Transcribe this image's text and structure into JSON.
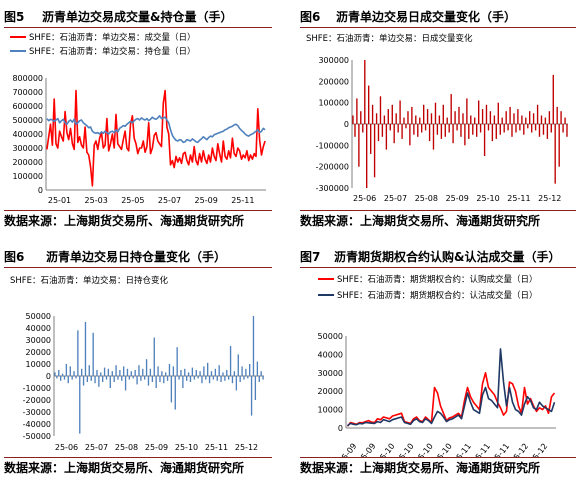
{
  "source_text": "数据来源：上海期货交易所、海通期货研究所",
  "chart_data": [
    {
      "id": "c1",
      "type": "line",
      "figure_label": "图5",
      "title": "沥青单边交易成交量&持仓量（手）",
      "legend": "top-left",
      "x_ticks": [
        "25-01",
        "25-03",
        "25-05",
        "25-07",
        "25-09",
        "25-11"
      ],
      "ylim": [
        0,
        800000
      ],
      "y_ticks": [
        0,
        100000,
        200000,
        300000,
        400000,
        500000,
        600000,
        700000,
        800000
      ],
      "y_tick_labels": [
        "0",
        "100000",
        "200000",
        "300000",
        "400000",
        "500000",
        "600000",
        "700000",
        "800000"
      ],
      "series": [
        {
          "name": "SHFE：石油沥青：单边交易：成交量（日）",
          "color": "#ff0000",
          "values": [
            290000,
            380000,
            470000,
            320000,
            650000,
            330000,
            300000,
            420000,
            380000,
            350000,
            560000,
            410000,
            360000,
            440000,
            330000,
            290000,
            710000,
            340000,
            380000,
            320000,
            300000,
            450000,
            270000,
            250000,
            170000,
            30000,
            320000,
            350000,
            290000,
            370000,
            410000,
            300000,
            320000,
            510000,
            280000,
            330000,
            400000,
            300000,
            540000,
            330000,
            310000,
            290000,
            360000,
            420000,
            300000,
            280000,
            470000,
            530000,
            370000,
            330000,
            260000,
            300000,
            300000,
            350000,
            270000,
            310000,
            480000,
            260000,
            300000,
            390000,
            410000,
            350000,
            330000,
            310000,
            620000,
            710000,
            450000,
            400000,
            180000,
            210000,
            160000,
            240000,
            200000,
            230000,
            190000,
            260000,
            270000,
            210000,
            180000,
            250000,
            200000,
            310000,
            210000,
            180000,
            260000,
            200000,
            280000,
            220000,
            190000,
            250000,
            200000,
            300000,
            240000,
            210000,
            330000,
            260000,
            200000,
            350000,
            240000,
            220000,
            280000,
            230000,
            370000,
            260000,
            240000,
            300000,
            280000,
            220000,
            250000,
            230000,
            280000,
            210000,
            250000,
            220000,
            260000,
            240000,
            580000,
            360000,
            250000,
            310000,
            350000
          ]
        },
        {
          "name": "SHFE：石油沥青：单边交易：持仓量（日）",
          "color": "#4f81bd",
          "values": [
            510000,
            495000,
            505000,
            500000,
            490000,
            500000,
            510000,
            480000,
            495000,
            505000,
            480000,
            470000,
            490000,
            500000,
            485000,
            505000,
            470000,
            480000,
            495000,
            500000,
            480000,
            470000,
            460000,
            445000,
            450000,
            420000,
            410000,
            405000,
            410000,
            400000,
            415000,
            405000,
            420000,
            410000,
            400000,
            415000,
            420000,
            410000,
            430000,
            415000,
            440000,
            450000,
            460000,
            455000,
            470000,
            480000,
            490000,
            480000,
            495000,
            505000,
            510000,
            500000,
            515000,
            505000,
            500000,
            510000,
            495000,
            505000,
            520000,
            510000,
            505000,
            515000,
            530000,
            510000,
            515000,
            520000,
            500000,
            480000,
            430000,
            390000,
            370000,
            355000,
            350000,
            360000,
            355000,
            340000,
            345000,
            360000,
            355000,
            350000,
            365000,
            355000,
            345000,
            340000,
            355000,
            365000,
            380000,
            370000,
            360000,
            375000,
            385000,
            380000,
            395000,
            400000,
            405000,
            410000,
            415000,
            420000,
            430000,
            435000,
            445000,
            450000,
            455000,
            465000,
            470000,
            460000,
            440000,
            425000,
            415000,
            400000,
            390000,
            385000,
            395000,
            400000,
            410000,
            420000,
            430000,
            410000,
            420000,
            440000,
            430000
          ]
        }
      ]
    },
    {
      "id": "c2",
      "type": "bar",
      "figure_label": "图6",
      "title": "沥青单边交易日成交量变化（手）",
      "legend": "top-left",
      "x_ticks": [
        "25-06",
        "25-07",
        "25-08",
        "25-09",
        "25-10",
        "25-11",
        "25-12"
      ],
      "ylim": [
        -300000,
        300000
      ],
      "y_ticks": [
        -300000,
        -200000,
        -100000,
        0,
        100000,
        200000,
        300000
      ],
      "y_tick_labels": [
        "-300000",
        "-200000",
        "-100000",
        "0",
        "100000",
        "200000",
        "300000"
      ],
      "series": [
        {
          "name": "SHFE：石油沥青：单边交易：日成交量变化",
          "color": "#c00000",
          "values": [
            40000,
            -60000,
            120000,
            -200000,
            60000,
            -40000,
            300000,
            -300000,
            180000,
            -140000,
            90000,
            -250000,
            50000,
            -80000,
            130000,
            -60000,
            40000,
            -120000,
            70000,
            -30000,
            90000,
            -90000,
            50000,
            -40000,
            110000,
            -70000,
            30000,
            -20000,
            60000,
            -100000,
            80000,
            -50000,
            40000,
            -60000,
            30000,
            -40000,
            90000,
            -30000,
            70000,
            -80000,
            50000,
            -120000,
            100000,
            -50000,
            40000,
            -70000,
            90000,
            -60000,
            30000,
            -40000,
            140000,
            -90000,
            60000,
            -30000,
            80000,
            -60000,
            50000,
            -100000,
            120000,
            -70000,
            40000,
            -50000,
            30000,
            -60000,
            110000,
            -40000,
            70000,
            -150000,
            90000,
            -30000,
            60000,
            -80000,
            40000,
            -70000,
            100000,
            -50000,
            30000,
            -40000,
            60000,
            -30000,
            80000,
            -60000,
            50000,
            -40000,
            70000,
            -30000,
            40000,
            -50000,
            30000,
            -20000,
            60000,
            -40000,
            50000,
            -30000,
            90000,
            -60000,
            40000,
            -50000,
            30000,
            -70000,
            60000,
            -40000,
            230000,
            -280000,
            80000,
            -200000,
            60000,
            -40000,
            30000,
            -60000
          ]
        }
      ]
    },
    {
      "id": "c3",
      "type": "bar",
      "figure_label": "图6",
      "title": "沥青单边交易日持仓量变化（手）",
      "legend": "top-left",
      "x_ticks": [
        "25-06",
        "25-07",
        "25-08",
        "25-09",
        "25-10",
        "25-11",
        "25-12"
      ],
      "ylim": [
        -50000,
        50000
      ],
      "y_ticks": [
        -50000,
        -40000,
        -30000,
        -20000,
        -10000,
        0,
        10000,
        20000,
        30000,
        40000,
        50000
      ],
      "y_tick_labels": [
        "-50000",
        "-40000",
        "-30000",
        "-20000",
        "-10000",
        "0",
        "10000",
        "20000",
        "30000",
        "40000",
        "50000"
      ],
      "series": [
        {
          "name": "SHFE：石油沥青：单边交易：日持仓变化",
          "color": "#4f81bd",
          "values": [
            3000,
            -2000,
            5000,
            -4000,
            2000,
            -3000,
            10000,
            -6000,
            8000,
            -3000,
            4000,
            -2000,
            38000,
            -48000,
            6000,
            -8000,
            45000,
            -5000,
            9000,
            -4000,
            36000,
            -6000,
            5000,
            -9000,
            3000,
            -5000,
            7000,
            -3000,
            6000,
            -10000,
            4000,
            -5000,
            9000,
            -3000,
            5000,
            -4000,
            8000,
            -12000,
            6000,
            -3000,
            4000,
            -2000,
            5000,
            -7000,
            9000,
            -4000,
            6000,
            -3000,
            14000,
            -8000,
            6000,
            -5000,
            32000,
            -10000,
            8000,
            -5000,
            4000,
            -6000,
            3000,
            -4000,
            10000,
            -22000,
            8000,
            -28000,
            24000,
            -3000,
            5000,
            -10000,
            6000,
            -4000,
            3000,
            -5000,
            7000,
            -3000,
            5000,
            -2000,
            4000,
            -6000,
            8000,
            -3000,
            11000,
            -6000,
            4000,
            -3000,
            6000,
            -4000,
            9000,
            -5000,
            3000,
            -4000,
            5000,
            -3000,
            25000,
            -6000,
            4000,
            -12000,
            18000,
            -5000,
            8000,
            -3000,
            6000,
            -2000,
            10000,
            -33000,
            50000,
            -20000,
            12000,
            -5000,
            4000,
            -3000
          ]
        }
      ]
    },
    {
      "id": "c4",
      "type": "line",
      "figure_label": "图7",
      "title": "沥青期货期权合约认购&认沽成交量（手）",
      "legend": "top-left",
      "x_ticks": [
        "25-09",
        "25-09",
        "25-10",
        "25-10",
        "25-10",
        "25-10",
        "25-11",
        "25-11",
        "25-11",
        "25-12",
        "25-12"
      ],
      "ylim": [
        0,
        50000
      ],
      "y_ticks": [
        0,
        10000,
        20000,
        30000,
        40000,
        50000
      ],
      "y_tick_labels": [
        "0",
        "10000",
        "20000",
        "30000",
        "40000",
        "50000"
      ],
      "series": [
        {
          "name": "SHFE：石油沥青：期货期权合约：认购成交量（日）",
          "color": "#ff0000",
          "values": [
            1000,
            3000,
            2500,
            2000,
            3000,
            2800,
            3500,
            4000,
            3200,
            3000,
            5000,
            4500,
            6000,
            5500,
            5000,
            6500,
            7000,
            7500,
            8000,
            3500,
            3000,
            2500,
            5000,
            6000,
            4000,
            3500,
            6000,
            4500,
            3000,
            22000,
            19000,
            12000,
            8000,
            4000,
            5500,
            6000,
            7000,
            8000,
            6000,
            15000,
            22000,
            17000,
            14000,
            12000,
            10000,
            24000,
            30000,
            22000,
            20000,
            18000,
            14000,
            11000,
            7000,
            9000,
            25000,
            24000,
            20000,
            12000,
            8000,
            22000,
            13000,
            16000,
            12000,
            9000,
            11000,
            10000,
            12000,
            8000,
            17000,
            19000
          ]
        },
        {
          "name": "SHFE：石油沥青：期货期权合约：认沽成交量（日）",
          "color": "#1f3864",
          "values": [
            1200,
            2500,
            2000,
            1800,
            2500,
            2300,
            3000,
            2800,
            2600,
            2500,
            3500,
            3000,
            4500,
            4000,
            3500,
            4500,
            5000,
            5500,
            6000,
            3000,
            2500,
            2000,
            4000,
            5000,
            3500,
            3000,
            5000,
            4000,
            2500,
            6000,
            9000,
            8000,
            6000,
            3500,
            4500,
            5000,
            6000,
            7000,
            5000,
            12000,
            19000,
            14000,
            10000,
            9000,
            8000,
            18000,
            22000,
            16000,
            15000,
            13000,
            11000,
            43000,
            25000,
            12000,
            22000,
            14000,
            10000,
            9000,
            7000,
            13000,
            17000,
            15000,
            11000,
            10000,
            14000,
            12000,
            11000,
            10000,
            9000,
            14000
          ]
        }
      ]
    }
  ]
}
